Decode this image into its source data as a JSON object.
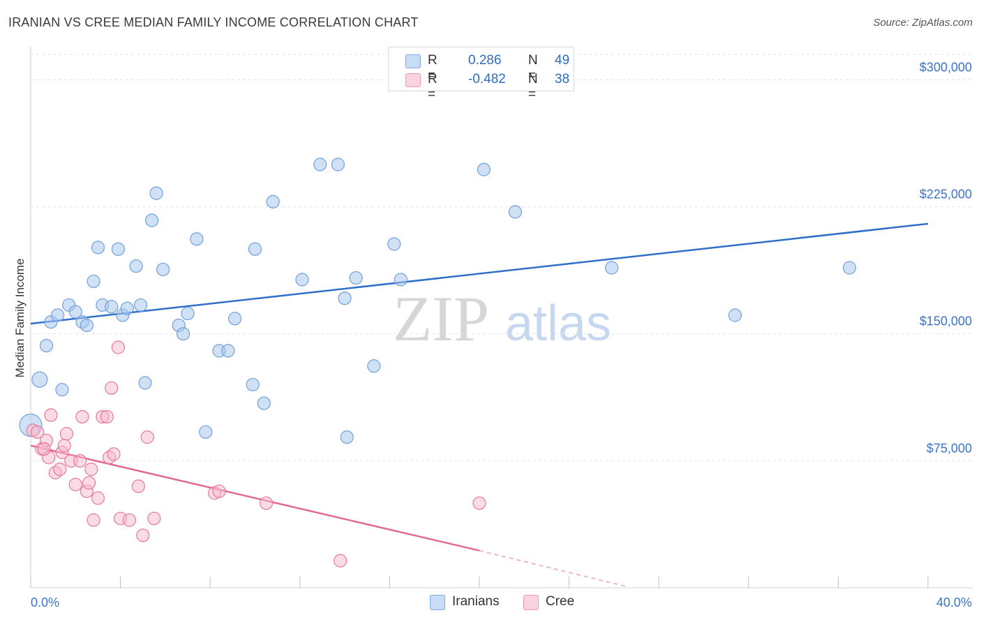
{
  "header": {
    "title": "IRANIAN VS CREE MEDIAN FAMILY INCOME CORRELATION CHART",
    "source": "Source: ZipAtlas.com"
  },
  "watermark": {
    "zip": "ZIP",
    "atlas": "atlas"
  },
  "legend": {
    "rows": [
      {
        "r_label": "R =",
        "r_value": "0.286",
        "n_label": "N =",
        "n_value": "49",
        "color": "#aac8ef"
      },
      {
        "r_label": "R =",
        "r_value": "-0.482",
        "n_label": "N =",
        "n_value": "38",
        "color": "#f7b9cb"
      }
    ]
  },
  "bottom_legend": {
    "items": [
      {
        "label": "Iranians",
        "color": "#aac8ef"
      },
      {
        "label": "Cree",
        "color": "#f7b9cb"
      }
    ]
  },
  "chart_data": {
    "type": "scatter",
    "title": "IRANIAN VS CREE MEDIAN FAMILY INCOME CORRELATION CHART",
    "xlabel": "",
    "ylabel": "Median Family Income",
    "xlim": [
      0,
      40
    ],
    "ylim": [
      0,
      315000
    ],
    "x_tick_labels": [
      "0.0%",
      "40.0%"
    ],
    "y_ticks": [
      75000,
      150000,
      225000,
      300000
    ],
    "y_tick_labels": [
      "$75,000",
      "$150,000",
      "$225,000",
      "$300,000"
    ],
    "grid": true,
    "legend_position": "top-center",
    "series": [
      {
        "name": "Iranians",
        "color": "#6f9fdc",
        "fill": "#aac8ef",
        "trend": {
          "x": [
            0,
            40
          ],
          "y": [
            156000,
            215000
          ]
        },
        "points": [
          [
            0.0,
            96000
          ],
          [
            0.4,
            123000
          ],
          [
            0.7,
            143000
          ],
          [
            0.9,
            157000
          ],
          [
            1.2,
            161000
          ],
          [
            1.4,
            117000
          ],
          [
            1.7,
            167000
          ],
          [
            2.0,
            163000
          ],
          [
            2.3,
            157000
          ],
          [
            2.5,
            155000
          ],
          [
            2.8,
            181000
          ],
          [
            3.0,
            201000
          ],
          [
            3.2,
            167000
          ],
          [
            3.6,
            166000
          ],
          [
            3.9,
            200000
          ],
          [
            4.1,
            161000
          ],
          [
            4.3,
            165000
          ],
          [
            4.7,
            190000
          ],
          [
            4.9,
            167000
          ],
          [
            5.1,
            121000
          ],
          [
            5.4,
            217000
          ],
          [
            5.6,
            233000
          ],
          [
            5.9,
            188000
          ],
          [
            6.6,
            155000
          ],
          [
            6.8,
            150000
          ],
          [
            7.0,
            162000
          ],
          [
            7.4,
            206000
          ],
          [
            7.8,
            92000
          ],
          [
            8.4,
            140000
          ],
          [
            8.8,
            140000
          ],
          [
            9.1,
            159000
          ],
          [
            9.9,
            120000
          ],
          [
            10.0,
            200000
          ],
          [
            10.4,
            109000
          ],
          [
            10.8,
            228000
          ],
          [
            12.1,
            182000
          ],
          [
            12.9,
            250000
          ],
          [
            13.7,
            250000
          ],
          [
            14.0,
            171000
          ],
          [
            14.1,
            89000
          ],
          [
            14.5,
            183000
          ],
          [
            15.3,
            131000
          ],
          [
            16.2,
            203000
          ],
          [
            16.5,
            182000
          ],
          [
            20.2,
            247000
          ],
          [
            21.6,
            222000
          ],
          [
            25.9,
            189000
          ],
          [
            31.4,
            161000
          ],
          [
            36.5,
            189000
          ]
        ]
      },
      {
        "name": "Cree",
        "color": "#e5789c",
        "fill": "#f7b9cb",
        "trend": {
          "x": [
            0,
            20
          ],
          "y": [
            84000,
            22000
          ]
        },
        "trend_dashed": {
          "x": [
            20,
            26.5
          ],
          "y": [
            22000,
            1000
          ]
        },
        "points": [
          [
            0.1,
            93000
          ],
          [
            0.3,
            92000
          ],
          [
            0.5,
            82000
          ],
          [
            0.7,
            87000
          ],
          [
            0.8,
            77000
          ],
          [
            0.9,
            102000
          ],
          [
            1.1,
            68000
          ],
          [
            1.3,
            70000
          ],
          [
            1.4,
            80000
          ],
          [
            1.5,
            84000
          ],
          [
            1.6,
            91000
          ],
          [
            1.8,
            75000
          ],
          [
            2.0,
            61000
          ],
          [
            2.2,
            75000
          ],
          [
            2.3,
            101000
          ],
          [
            2.5,
            57000
          ],
          [
            2.6,
            62000
          ],
          [
            2.7,
            70000
          ],
          [
            2.8,
            40000
          ],
          [
            3.0,
            53000
          ],
          [
            3.2,
            101000
          ],
          [
            3.4,
            101000
          ],
          [
            3.5,
            77000
          ],
          [
            3.6,
            118000
          ],
          [
            3.7,
            79000
          ],
          [
            3.9,
            142000
          ],
          [
            4.0,
            41000
          ],
          [
            4.4,
            40000
          ],
          [
            4.8,
            60000
          ],
          [
            5.0,
            31000
          ],
          [
            5.2,
            89000
          ],
          [
            5.5,
            41000
          ],
          [
            8.2,
            56000
          ],
          [
            8.4,
            57000
          ],
          [
            10.5,
            50000
          ],
          [
            13.8,
            16000
          ],
          [
            20.0,
            50000
          ],
          [
            0.6,
            82000
          ]
        ]
      }
    ]
  }
}
